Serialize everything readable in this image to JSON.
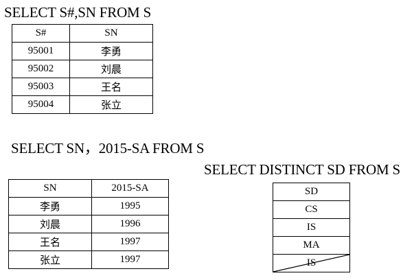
{
  "query1": {
    "sql": "SELECT S#,SN FROM S",
    "columns": [
      "S#",
      "SN"
    ],
    "rows": [
      [
        "95001",
        "李勇"
      ],
      [
        "95002",
        "刘晨"
      ],
      [
        "95003",
        "王名"
      ],
      [
        "95004",
        "张立"
      ]
    ]
  },
  "query2": {
    "sql": "SELECT SN，2015-SA FROM S",
    "columns": [
      "SN",
      "2015-SA"
    ],
    "rows": [
      [
        "李勇",
        "1995"
      ],
      [
        "刘晨",
        "1996"
      ],
      [
        "王名",
        "1997"
      ],
      [
        "张立",
        "1997"
      ]
    ]
  },
  "query3": {
    "sql": "SELECT DISTINCT SD FROM S",
    "columns": [
      "SD"
    ],
    "rows": [
      [
        "CS"
      ],
      [
        "IS"
      ],
      [
        "MA"
      ]
    ],
    "removed_row": [
      "IS"
    ]
  }
}
